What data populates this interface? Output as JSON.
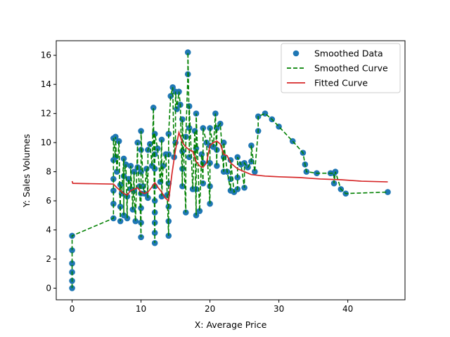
{
  "chart_data": {
    "type": "scatter",
    "xlabel": "X: Average Price",
    "ylabel": "Y: Sales Volumes",
    "xlim": [
      -2.3,
      48.3
    ],
    "ylim": [
      -0.8,
      17.0
    ],
    "xticks": [
      0,
      10,
      20,
      30,
      40
    ],
    "yticks": [
      0,
      2,
      4,
      6,
      8,
      10,
      12,
      14,
      16
    ],
    "grid": false,
    "legend": "top-right",
    "colors": {
      "points": "#1f77b4",
      "smoothed": "#008000",
      "fitted": "#d62728"
    },
    "series": [
      {
        "name": "Smoothed Data",
        "kind": "scatter",
        "x": [
          0,
          0,
          0,
          0,
          0,
          0,
          6,
          6,
          6,
          6,
          6,
          6,
          6.3,
          6.3,
          6.5,
          6.8,
          7,
          7,
          7,
          7.2,
          7.5,
          7.5,
          7.5,
          7.8,
          8,
          8,
          8.2,
          8.5,
          8.5,
          8.8,
          9,
          9,
          9.2,
          9.5,
          9.5,
          9.8,
          10,
          10,
          10,
          10,
          10,
          10,
          10,
          10.3,
          10.5,
          10.8,
          11,
          11,
          11.3,
          11.6,
          11.8,
          12,
          12,
          12,
          12,
          12,
          12,
          12,
          12,
          12,
          12.4,
          12.8,
          13,
          13,
          13.2,
          13.6,
          13.8,
          14,
          14,
          14,
          14,
          14,
          14,
          14.3,
          14.6,
          14.8,
          15,
          15,
          15.2,
          15.5,
          15.7,
          16,
          16,
          16,
          16,
          16.5,
          16.5,
          16.8,
          16.8,
          17,
          17,
          17,
          17.5,
          17.8,
          18,
          18,
          18,
          18,
          18.5,
          18.8,
          19,
          19,
          19,
          19.5,
          20,
          20,
          20,
          20,
          20,
          20.5,
          20.8,
          21,
          21,
          21,
          21.5,
          22,
          22,
          22,
          22.5,
          23,
          23,
          23,
          23.5,
          24,
          24,
          24,
          24.5,
          25,
          25,
          25.5,
          26,
          26,
          26.5,
          27,
          27,
          28,
          29,
          30,
          32,
          33.5,
          33.8,
          34,
          35.5,
          37.5,
          38,
          38,
          38.2,
          39,
          39.7,
          45.8
        ],
        "y": [
          0,
          0.5,
          1.1,
          1.7,
          2.6,
          3.6,
          4.8,
          5.8,
          6.7,
          7.5,
          8.8,
          10.3,
          9.0,
          10.4,
          8.0,
          10.1,
          4.6,
          5.6,
          7.1,
          6.5,
          8.9,
          5.0,
          7.7,
          8.5,
          4.8,
          6.3,
          7.5,
          6.8,
          8.4,
          5.4,
          8.0,
          6.7,
          4.6,
          10.0,
          8.3,
          7.0,
          3.5,
          4.5,
          5.5,
          6.5,
          8.0,
          9.5,
          10.8,
          7.0,
          6.5,
          8.2,
          6.2,
          9.5,
          9.9,
          8.4,
          12.4,
          3.1,
          3.8,
          4.5,
          5.2,
          6.0,
          7.0,
          8.2,
          9.2,
          10.6,
          9.6,
          7.3,
          10.2,
          6.3,
          8.4,
          9.2,
          6.4,
          3.6,
          4.6,
          5.6,
          7.2,
          9.2,
          10.6,
          13.2,
          13.8,
          9.0,
          10.0,
          13.5,
          12.3,
          13.5,
          12.6,
          7.0,
          8.2,
          9.4,
          11.6,
          5.2,
          10.4,
          14.7,
          16.2,
          11.0,
          9.0,
          12.5,
          6.8,
          10.8,
          5.0,
          6.8,
          9.6,
          12.0,
          5.3,
          9.2,
          7.2,
          8.6,
          11.0,
          10.0,
          5.8,
          7.0,
          8.6,
          9.8,
          11.0,
          9.7,
          12.0,
          8.4,
          9.5,
          11.0,
          11.3,
          8.0,
          9.0,
          10.0,
          8.0,
          6.7,
          7.5,
          8.8,
          6.6,
          6.8,
          7.6,
          9.0,
          8.5,
          6.9,
          8.6,
          8.3,
          8.7,
          9.8,
          8.0,
          10.8,
          11.8,
          12.0,
          11.6,
          11.1,
          10.1,
          9.3,
          8.5,
          8.0,
          7.9,
          7.9,
          7.9,
          7.2,
          8.0,
          6.8,
          6.5,
          6.6
        ]
      },
      {
        "name": "Smoothed Curve",
        "kind": "dashed-line",
        "x": [
          0,
          0,
          0,
          0,
          0,
          0,
          6,
          6,
          6,
          6,
          6,
          6,
          6.3,
          6.3,
          6.5,
          6.8,
          7,
          7,
          7,
          7.2,
          7.5,
          7.5,
          7.5,
          7.8,
          8,
          8,
          8.2,
          8.5,
          8.5,
          8.8,
          9,
          9,
          9.2,
          9.5,
          9.5,
          9.8,
          10,
          10,
          10,
          10,
          10,
          10,
          10,
          10.3,
          10.5,
          10.8,
          11,
          11,
          11.3,
          11.6,
          11.8,
          12,
          12,
          12,
          12,
          12,
          12,
          12,
          12,
          12,
          12.4,
          12.8,
          13,
          13,
          13.2,
          13.6,
          13.8,
          14,
          14,
          14,
          14,
          14,
          14,
          14.3,
          14.6,
          14.8,
          15,
          15,
          15.2,
          15.5,
          15.7,
          16,
          16,
          16,
          16,
          16.5,
          16.5,
          16.8,
          16.8,
          17,
          17,
          17,
          17.5,
          17.8,
          18,
          18,
          18,
          18,
          18.5,
          18.8,
          19,
          19,
          19,
          19.5,
          20,
          20,
          20,
          20,
          20,
          20.5,
          20.8,
          21,
          21,
          21,
          21.5,
          22,
          22,
          22,
          22.5,
          23,
          23,
          23,
          23.5,
          24,
          24,
          24,
          24.5,
          25,
          25,
          25.5,
          26,
          26,
          26.5,
          27,
          27,
          28,
          29,
          30,
          32,
          33.5,
          33.8,
          34,
          35.5,
          37.5,
          38,
          38,
          38.2,
          39,
          39.7,
          45.8
        ],
        "y": [
          0,
          0.5,
          1.1,
          1.7,
          2.6,
          3.6,
          4.8,
          5.8,
          6.7,
          7.5,
          8.8,
          10.3,
          9.0,
          10.4,
          8.0,
          10.1,
          4.6,
          5.6,
          7.1,
          6.5,
          8.9,
          5.0,
          7.7,
          8.5,
          4.8,
          6.3,
          7.5,
          6.8,
          8.4,
          5.4,
          8.0,
          6.7,
          4.6,
          10.0,
          8.3,
          7.0,
          3.5,
          4.5,
          5.5,
          6.5,
          8.0,
          9.5,
          10.8,
          7.0,
          6.5,
          8.2,
          6.2,
          9.5,
          9.9,
          8.4,
          12.4,
          3.1,
          3.8,
          4.5,
          5.2,
          6.0,
          7.0,
          8.2,
          9.2,
          10.6,
          9.6,
          7.3,
          10.2,
          6.3,
          8.4,
          9.2,
          6.4,
          3.6,
          4.6,
          5.6,
          7.2,
          9.2,
          10.6,
          13.2,
          13.8,
          9.0,
          10.0,
          13.5,
          12.3,
          13.5,
          12.6,
          7.0,
          8.2,
          9.4,
          11.6,
          5.2,
          10.4,
          14.7,
          16.2,
          11.0,
          9.0,
          12.5,
          6.8,
          10.8,
          5.0,
          6.8,
          9.6,
          12.0,
          5.3,
          9.2,
          7.2,
          8.6,
          11.0,
          10.0,
          5.8,
          7.0,
          8.6,
          9.8,
          11.0,
          9.7,
          12.0,
          8.4,
          9.5,
          11.0,
          11.3,
          8.0,
          9.0,
          10.0,
          8.0,
          6.7,
          7.5,
          8.8,
          6.6,
          6.8,
          7.6,
          9.0,
          8.5,
          6.9,
          8.6,
          8.3,
          8.7,
          9.8,
          8.0,
          10.8,
          11.8,
          12.0,
          11.6,
          11.1,
          10.1,
          9.3,
          8.5,
          8.0,
          7.9,
          7.9,
          7.9,
          7.2,
          8.0,
          6.8,
          6.5,
          6.6
        ]
      },
      {
        "name": "Fitted Curve",
        "kind": "line",
        "x": [
          0,
          0.1,
          6,
          6.5,
          7,
          7.5,
          8,
          8.5,
          9,
          9.5,
          10,
          10.5,
          11,
          11.5,
          12,
          12.5,
          13,
          13.5,
          14,
          14.5,
          15,
          15.5,
          16,
          16.5,
          17,
          17.5,
          18,
          18.5,
          19,
          19.5,
          20,
          20.5,
          21,
          21.5,
          22,
          22.5,
          23,
          23.5,
          24,
          25,
          26,
          28,
          30,
          33,
          36,
          39,
          42,
          45.8
        ],
        "y": [
          7.35,
          7.2,
          7.15,
          6.9,
          6.7,
          6.5,
          6.4,
          6.7,
          6.8,
          6.9,
          6.6,
          6.5,
          6.6,
          6.9,
          7.25,
          6.9,
          6.6,
          6.2,
          6.0,
          7.9,
          9.5,
          10.7,
          10.0,
          9.7,
          9.5,
          9.4,
          8.7,
          8.4,
          8.3,
          8.6,
          9.8,
          10.0,
          10.1,
          9.9,
          9.2,
          9.1,
          8.6,
          8.4,
          8.2,
          8.0,
          7.8,
          7.7,
          7.65,
          7.6,
          7.5,
          7.45,
          7.35,
          7.3
        ]
      }
    ]
  }
}
